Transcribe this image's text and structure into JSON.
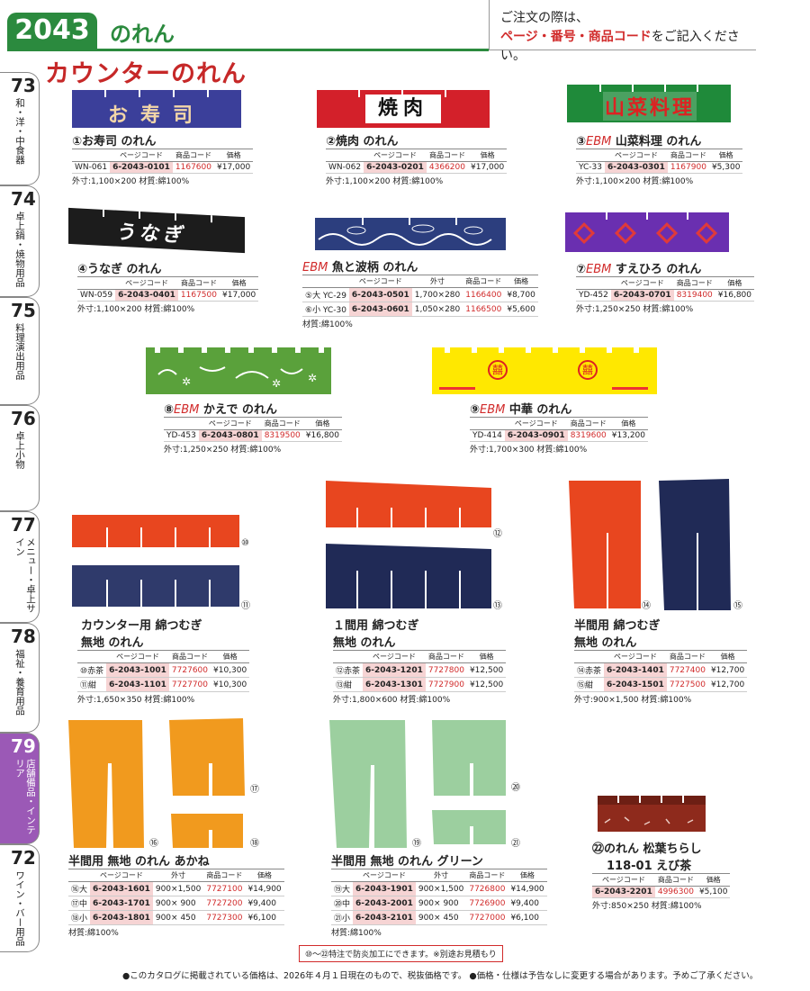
{
  "header": {
    "page_number": "2043",
    "section": "のれん",
    "order_line1": "ご注文の際は、",
    "order_line2_red": "ページ・番号・商品コード",
    "order_line2_rest": "をご記入ください。"
  },
  "category_title": "カウンターのれん",
  "tabs": [
    {
      "num": "73",
      "label": "和・洋・中食器"
    },
    {
      "num": "74",
      "label": "卓上鍋・焼物用品"
    },
    {
      "num": "75",
      "label": "料理演出用品"
    },
    {
      "num": "76",
      "label": "卓上小物"
    },
    {
      "num": "77",
      "label": "メニュー・卓上サイン"
    },
    {
      "num": "78",
      "label": "福祉・養育用品"
    },
    {
      "num": "79",
      "label": "店舗備品・インテリア"
    },
    {
      "num": "72",
      "label": "ワイン・バー用品"
    }
  ],
  "table_headers": {
    "page_code": "ページコード",
    "product_code": "商品コード",
    "price": "価格",
    "size": "外寸"
  },
  "products": {
    "p1": {
      "no": "①",
      "name": "お寿司 のれん",
      "model": "WN-061",
      "page_code": "6-2043-0101",
      "code": "1167600",
      "price": "¥17,000",
      "meta": "外寸:1,100×200 材質:綿100%",
      "banner_text": "お寿司"
    },
    "p2": {
      "no": "②",
      "name": "焼肉 のれん",
      "model": "WN-062",
      "page_code": "6-2043-0201",
      "code": "4366200",
      "price": "¥17,000",
      "meta": "外寸:1,100×200 材質:綿100%",
      "banner_text": "焼肉"
    },
    "p3": {
      "no": "③",
      "ebm": "EBM",
      "name": "山菜料理 のれん",
      "model": "YC-33",
      "page_code": "6-2043-0301",
      "code": "1167900",
      "price": "¥5,300",
      "meta": "外寸:1,100×200 材質:綿100%",
      "banner_text": "山菜料理"
    },
    "p4": {
      "no": "④",
      "name": "うなぎ のれん",
      "model": "WN-059",
      "page_code": "6-2043-0401",
      "code": "1167500",
      "price": "¥17,000",
      "meta": "外寸:1,100×200 材質:綿100%",
      "banner_text": "うなぎ"
    },
    "p5": {
      "ebm": "EBM",
      "name": "魚と波柄 のれん",
      "rows": [
        {
          "label": "⑤大 YC-29",
          "page_code": "6-2043-0501",
          "size": "1,700×280",
          "code": "1166400",
          "price": "¥8,700"
        },
        {
          "label": "⑥小 YC-30",
          "page_code": "6-2043-0601",
          "size": "1,050×280",
          "code": "1166500",
          "price": "¥5,600"
        }
      ],
      "meta": "材質:綿100%"
    },
    "p7": {
      "no": "⑦",
      "ebm": "EBM",
      "name": "すえひろ のれん",
      "model": "YD-452",
      "page_code": "6-2043-0701",
      "code": "8319400",
      "price": "¥16,800",
      "meta": "外寸:1,250×250 材質:綿100%"
    },
    "p8": {
      "no": "⑧",
      "ebm": "EBM",
      "name": "かえで のれん",
      "model": "YD-453",
      "page_code": "6-2043-0801",
      "code": "8319500",
      "price": "¥16,800",
      "meta": "外寸:1,250×250 材質:綿100%"
    },
    "p9": {
      "no": "⑨",
      "ebm": "EBM",
      "name": "中華 のれん",
      "model": "YD-414",
      "page_code": "6-2043-0901",
      "code": "8319600",
      "price": "¥13,200",
      "meta": "外寸:1,700×300 材質:綿100%",
      "banner_text": "囍"
    },
    "p10": {
      "title1": "カウンター用 綿つむぎ",
      "title2": "無地 のれん",
      "rows": [
        {
          "label": "⑩赤茶",
          "page_code": "6-2043-1001",
          "code": "7727600",
          "price": "¥10,300"
        },
        {
          "label": "⑪紺",
          "page_code": "6-2043-1101",
          "code": "7727700",
          "price": "¥10,300"
        }
      ],
      "meta": "外寸:1,650×350 材質:綿100%",
      "n1": "⑩",
      "n2": "⑪"
    },
    "p12": {
      "title1": "１間用 綿つむぎ",
      "title2": "無地 のれん",
      "rows": [
        {
          "label": "⑫赤茶",
          "page_code": "6-2043-1201",
          "code": "7727800",
          "price": "¥12,500"
        },
        {
          "label": "⑬紺",
          "page_code": "6-2043-1301",
          "code": "7727900",
          "price": "¥12,500"
        }
      ],
      "meta": "外寸:1,800×600 材質:綿100%",
      "n1": "⑫",
      "n2": "⑬"
    },
    "p14": {
      "title1": "半間用 綿つむぎ",
      "title2": "無地 のれん",
      "rows": [
        {
          "label": "⑭赤茶",
          "page_code": "6-2043-1401",
          "code": "7727400",
          "price": "¥12,700"
        },
        {
          "label": "⑮紺",
          "page_code": "6-2043-1501",
          "code": "7727500",
          "price": "¥12,700"
        }
      ],
      "meta": "外寸:900×1,500 材質:綿100%",
      "n1": "⑭",
      "n2": "⑮"
    },
    "p16": {
      "title": "半間用 無地 のれん あかね",
      "rows": [
        {
          "label": "⑯大",
          "page_code": "6-2043-1601",
          "size": "900×1,500",
          "code": "7727100",
          "price": "¥14,900"
        },
        {
          "label": "⑰中",
          "page_code": "6-2043-1701",
          "size": "900× 900",
          "code": "7727200",
          "price": "¥9,400"
        },
        {
          "label": "⑱小",
          "page_code": "6-2043-1801",
          "size": "900× 450",
          "code": "7727300",
          "price": "¥6,100"
        }
      ],
      "meta": "材質:綿100%",
      "n1": "⑯",
      "n2": "⑰",
      "n3": "⑱"
    },
    "p19": {
      "title": "半間用 無地 のれん グリーン",
      "rows": [
        {
          "label": "⑲大",
          "page_code": "6-2043-1901",
          "size": "900×1,500",
          "code": "7726800",
          "price": "¥14,900"
        },
        {
          "label": "⑳中",
          "page_code": "6-2043-2001",
          "size": "900× 900",
          "code": "7726900",
          "price": "¥9,400"
        },
        {
          "label": "㉑小",
          "page_code": "6-2043-2101",
          "size": "900× 450",
          "code": "7727000",
          "price": "¥6,100"
        }
      ],
      "meta": "材質:綿100%",
      "n1": "⑲",
      "n2": "⑳",
      "n3": "㉑"
    },
    "p22": {
      "title1": "㉒のれん 松葉ちらし",
      "title2": "118-01 えび茶",
      "page_code": "6-2043-2201",
      "code": "4996300",
      "price": "¥5,100",
      "meta": "外寸:850×250 材質:綿100%"
    }
  },
  "footnote": "⑩～㉒特注で防炎加工にできます。※別途お見積もり",
  "footer": "●このカタログに掲載されている価格は、2026年４月１日現在のもので、税抜価格です。 ●価格・仕様は予告なしに変更する場合があります。予めご了承ください。",
  "colors": {
    "green": "#2b8a3e",
    "red": "#d12b2b",
    "navy": "#2f3a6b",
    "orange": "#e8461f",
    "akane": "#f19a1e",
    "mint": "#9ccf9f",
    "purple": "#6a2fb0",
    "yellow": "#ffe800",
    "kaede": "#5aa13b",
    "ebicha": "#8e2a1c"
  }
}
